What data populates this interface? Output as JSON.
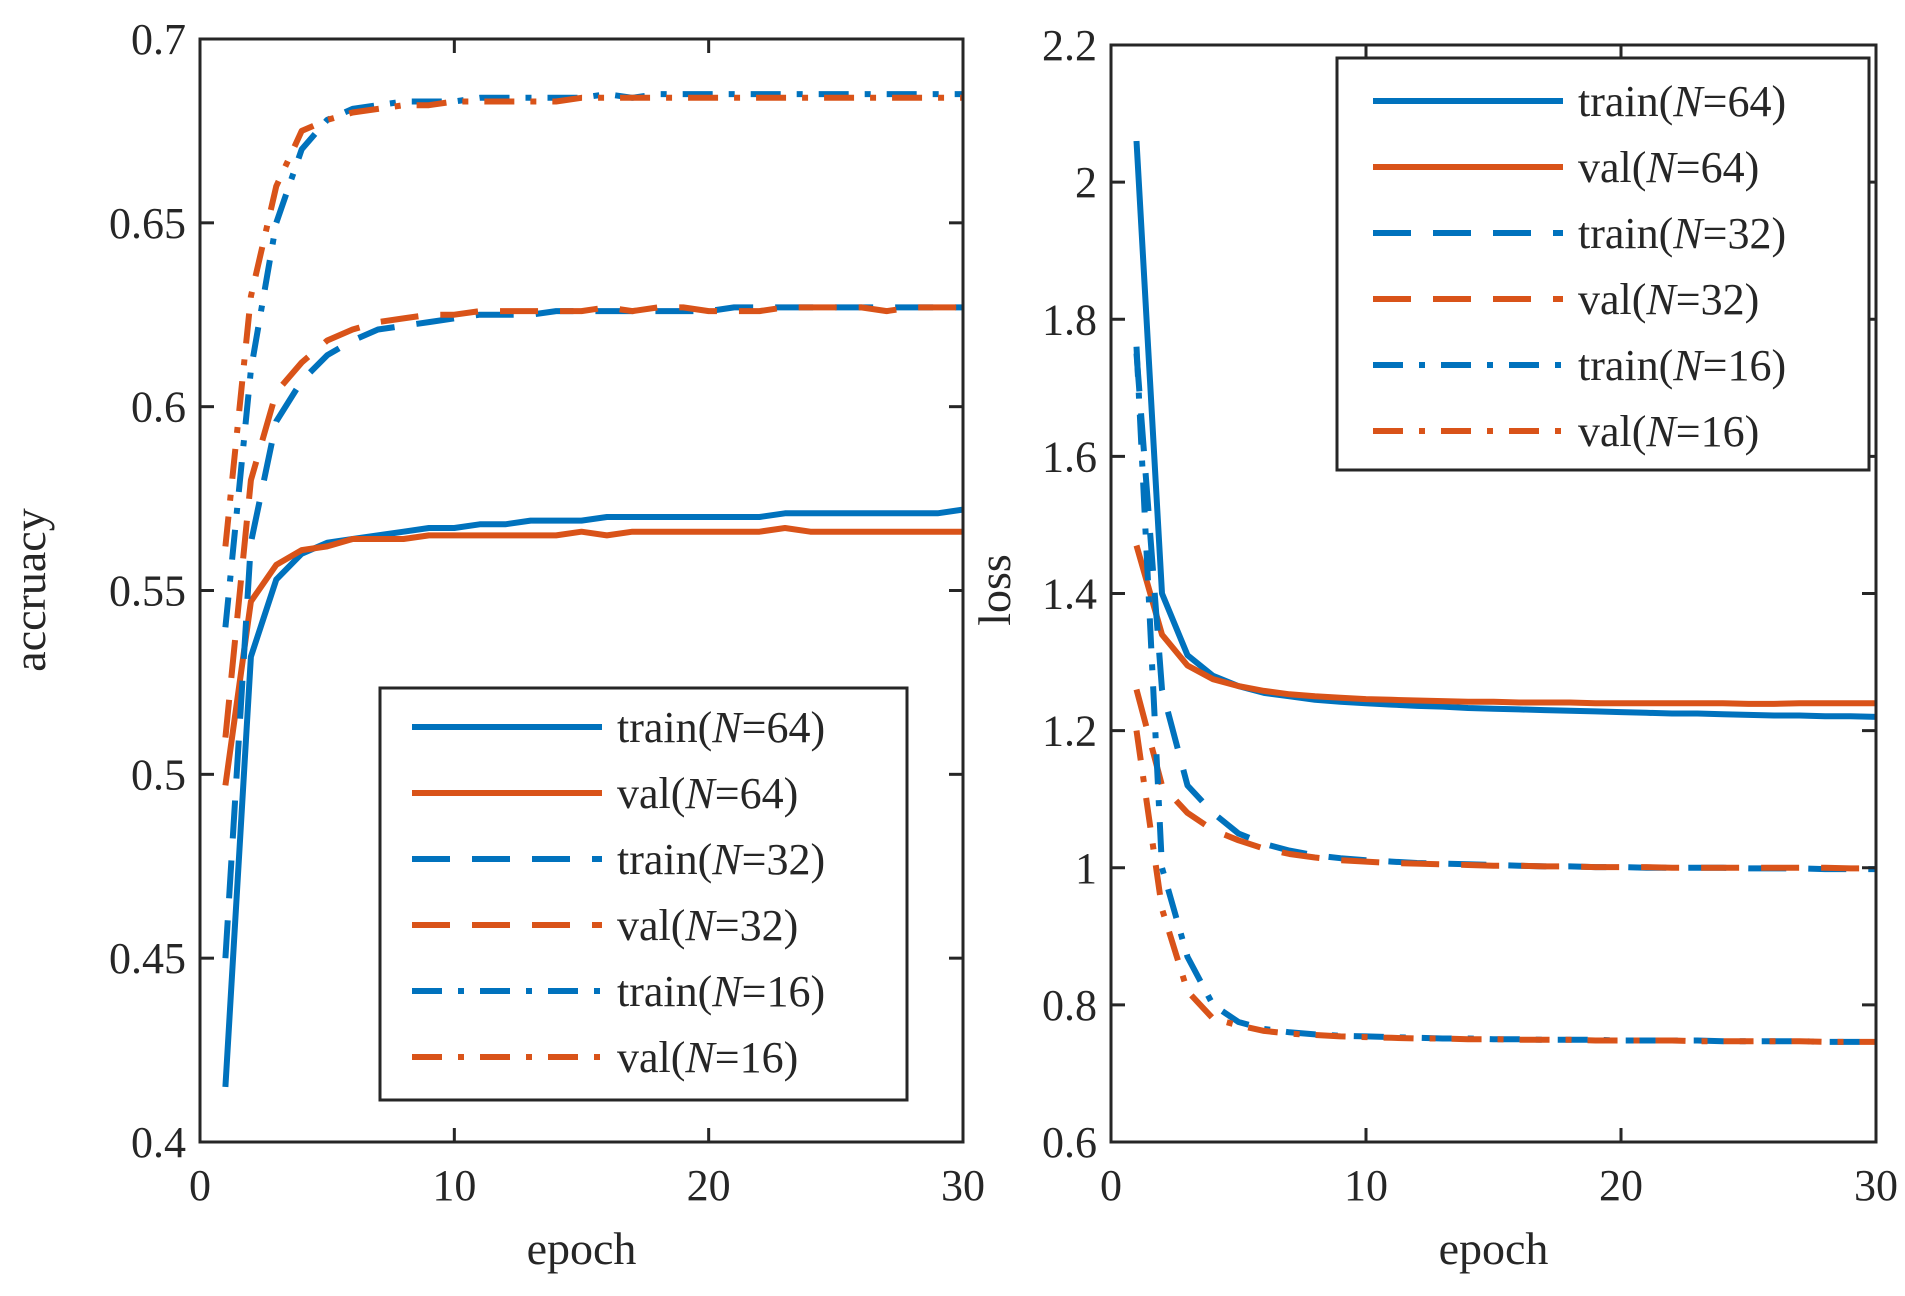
{
  "colors": {
    "train": "#0072BD",
    "val": "#D95319",
    "axis": "#262626"
  },
  "chart_data": [
    {
      "type": "line",
      "xlabel": "epoch",
      "ylabel": "accruacy",
      "xlim": [
        0,
        30
      ],
      "ylim": [
        0.4,
        0.7
      ],
      "xticks": [
        0,
        10,
        20,
        30
      ],
      "xtick_labels": [
        "0",
        "10",
        "20",
        "30"
      ],
      "yticks": [
        0.4,
        0.45,
        0.5,
        0.55,
        0.6,
        0.65,
        0.7
      ],
      "ytick_labels": [
        "0.4",
        "0.45",
        "0.5",
        "0.55",
        "0.6",
        "0.65",
        "0.7"
      ],
      "legend_position": "bottom-right",
      "x": [
        1,
        2,
        3,
        4,
        5,
        6,
        7,
        8,
        9,
        10,
        11,
        12,
        13,
        14,
        15,
        16,
        17,
        18,
        19,
        20,
        21,
        22,
        23,
        24,
        25,
        26,
        27,
        28,
        29,
        30
      ],
      "series": [
        {
          "name": "train(N=64)",
          "label_pre": "train(",
          "label_var": "N",
          "label_post": "=64)",
          "color_key": "train",
          "dash": "solid",
          "values": [
            0.415,
            0.532,
            0.553,
            0.56,
            0.563,
            0.564,
            0.565,
            0.566,
            0.567,
            0.567,
            0.568,
            0.568,
            0.569,
            0.569,
            0.569,
            0.57,
            0.57,
            0.57,
            0.57,
            0.57,
            0.57,
            0.57,
            0.571,
            0.571,
            0.571,
            0.571,
            0.571,
            0.571,
            0.571,
            0.572
          ]
        },
        {
          "name": "val(N=64)",
          "label_pre": "val(",
          "label_var": "N",
          "label_post": "=64)",
          "color_key": "val",
          "dash": "solid",
          "values": [
            0.497,
            0.547,
            0.557,
            0.561,
            0.562,
            0.564,
            0.564,
            0.564,
            0.565,
            0.565,
            0.565,
            0.565,
            0.565,
            0.565,
            0.566,
            0.565,
            0.566,
            0.566,
            0.566,
            0.566,
            0.566,
            0.566,
            0.567,
            0.566,
            0.566,
            0.566,
            0.566,
            0.566,
            0.566,
            0.566
          ]
        },
        {
          "name": "train(N=32)",
          "label_pre": "train(",
          "label_var": "N",
          "label_post": "=32)",
          "color_key": "train",
          "dash": "dashed",
          "values": [
            0.45,
            0.563,
            0.596,
            0.607,
            0.614,
            0.618,
            0.621,
            0.622,
            0.623,
            0.624,
            0.625,
            0.625,
            0.625,
            0.626,
            0.626,
            0.626,
            0.626,
            0.626,
            0.626,
            0.626,
            0.627,
            0.627,
            0.627,
            0.627,
            0.627,
            0.627,
            0.627,
            0.627,
            0.627,
            0.627
          ]
        },
        {
          "name": "val(N=32)",
          "label_pre": "val(",
          "label_var": "N",
          "label_post": "=32)",
          "color_key": "val",
          "dash": "dashed",
          "values": [
            0.51,
            0.58,
            0.604,
            0.612,
            0.618,
            0.621,
            0.623,
            0.624,
            0.625,
            0.625,
            0.626,
            0.626,
            0.626,
            0.626,
            0.626,
            0.627,
            0.626,
            0.627,
            0.627,
            0.626,
            0.626,
            0.626,
            0.627,
            0.627,
            0.627,
            0.627,
            0.626,
            0.627,
            0.627,
            0.627
          ]
        },
        {
          "name": "train(N=16)",
          "label_pre": "train(",
          "label_var": "N",
          "label_post": "=16)",
          "color_key": "train",
          "dash": "dashdot",
          "values": [
            0.54,
            0.61,
            0.65,
            0.67,
            0.678,
            0.681,
            0.682,
            0.683,
            0.683,
            0.683,
            0.684,
            0.684,
            0.684,
            0.684,
            0.684,
            0.685,
            0.684,
            0.685,
            0.685,
            0.685,
            0.685,
            0.685,
            0.685,
            0.685,
            0.685,
            0.685,
            0.685,
            0.685,
            0.685,
            0.685
          ]
        },
        {
          "name": "val(N=16)",
          "label_pre": "val(",
          "label_var": "N",
          "label_post": "=16)",
          "color_key": "val",
          "dash": "dashdot",
          "values": [
            0.562,
            0.63,
            0.66,
            0.675,
            0.678,
            0.68,
            0.681,
            0.682,
            0.682,
            0.683,
            0.683,
            0.683,
            0.683,
            0.683,
            0.684,
            0.684,
            0.684,
            0.684,
            0.684,
            0.684,
            0.684,
            0.684,
            0.684,
            0.684,
            0.684,
            0.684,
            0.684,
            0.684,
            0.684,
            0.684
          ]
        }
      ]
    },
    {
      "type": "line",
      "xlabel": "epoch",
      "ylabel": "loss",
      "xlim": [
        0,
        30
      ],
      "ylim": [
        0.6,
        2.2
      ],
      "xticks": [
        0,
        10,
        20,
        30
      ],
      "xtick_labels": [
        "0",
        "10",
        "20",
        "30"
      ],
      "yticks": [
        0.6,
        0.8,
        1.0,
        1.2,
        1.4,
        1.6,
        1.8,
        2.0,
        2.2
      ],
      "ytick_labels": [
        "0.6",
        "0.8",
        "1",
        "1.2",
        "1.4",
        "1.6",
        "1.8",
        "2",
        "2.2"
      ],
      "legend_position": "top-right",
      "x": [
        1,
        2,
        3,
        4,
        5,
        6,
        7,
        8,
        9,
        10,
        11,
        12,
        13,
        14,
        15,
        16,
        17,
        18,
        19,
        20,
        21,
        22,
        23,
        24,
        25,
        26,
        27,
        28,
        29,
        30
      ],
      "series": [
        {
          "name": "train(N=64)",
          "label_pre": "train(",
          "label_var": "N",
          "label_post": "=64)",
          "color_key": "train",
          "dash": "solid",
          "values": [
            2.06,
            1.4,
            1.31,
            1.28,
            1.265,
            1.255,
            1.25,
            1.245,
            1.242,
            1.24,
            1.238,
            1.236,
            1.235,
            1.233,
            1.232,
            1.231,
            1.23,
            1.229,
            1.228,
            1.227,
            1.226,
            1.225,
            1.225,
            1.224,
            1.223,
            1.222,
            1.222,
            1.221,
            1.221,
            1.22
          ]
        },
        {
          "name": "val(N=64)",
          "label_pre": "val(",
          "label_var": "N",
          "label_post": "=64)",
          "color_key": "val",
          "dash": "solid",
          "values": [
            1.47,
            1.34,
            1.295,
            1.275,
            1.265,
            1.258,
            1.253,
            1.25,
            1.248,
            1.246,
            1.245,
            1.244,
            1.243,
            1.242,
            1.242,
            1.241,
            1.241,
            1.241,
            1.24,
            1.24,
            1.24,
            1.24,
            1.24,
            1.24,
            1.239,
            1.239,
            1.24,
            1.24,
            1.24,
            1.24
          ]
        },
        {
          "name": "train(N=32)",
          "label_pre": "train(",
          "label_var": "N",
          "label_post": "=32)",
          "color_key": "train",
          "dash": "dashed",
          "values": [
            1.75,
            1.26,
            1.12,
            1.08,
            1.05,
            1.035,
            1.025,
            1.018,
            1.014,
            1.011,
            1.009,
            1.007,
            1.006,
            1.005,
            1.004,
            1.003,
            1.002,
            1.002,
            1.001,
            1.001,
            1.0,
            1.0,
            1.0,
            1.0,
            0.999,
            0.999,
            0.999,
            0.998,
            0.998,
            0.998
          ]
        },
        {
          "name": "val(N=32)",
          "label_pre": "val(",
          "label_var": "N",
          "label_post": "=32)",
          "color_key": "val",
          "dash": "dashed",
          "values": [
            1.26,
            1.12,
            1.08,
            1.055,
            1.04,
            1.028,
            1.02,
            1.015,
            1.011,
            1.009,
            1.007,
            1.006,
            1.005,
            1.004,
            1.003,
            1.003,
            1.002,
            1.002,
            1.001,
            1.001,
            1.001,
            1.0,
            1.0,
            1.0,
            1.0,
            1.0,
            1.0,
            1.0,
            0.999,
            0.999
          ]
        },
        {
          "name": "train(N=16)",
          "label_pre": "train(",
          "label_var": "N",
          "label_post": "=16)",
          "color_key": "train",
          "dash": "dashdot",
          "values": [
            1.76,
            1.0,
            0.87,
            0.8,
            0.775,
            0.765,
            0.76,
            0.757,
            0.755,
            0.754,
            0.753,
            0.752,
            0.751,
            0.751,
            0.75,
            0.75,
            0.749,
            0.749,
            0.749,
            0.748,
            0.748,
            0.748,
            0.748,
            0.747,
            0.747,
            0.747,
            0.747,
            0.746,
            0.746,
            0.746
          ]
        },
        {
          "name": "val(N=16)",
          "label_pre": "val(",
          "label_var": "N",
          "label_post": "=16)",
          "color_key": "val",
          "dash": "dashdot",
          "values": [
            1.2,
            0.94,
            0.82,
            0.78,
            0.77,
            0.762,
            0.758,
            0.756,
            0.754,
            0.753,
            0.752,
            0.751,
            0.751,
            0.75,
            0.75,
            0.749,
            0.749,
            0.749,
            0.748,
            0.748,
            0.748,
            0.748,
            0.747,
            0.747,
            0.747,
            0.747,
            0.747,
            0.746,
            0.746,
            0.746
          ]
        }
      ]
    }
  ]
}
